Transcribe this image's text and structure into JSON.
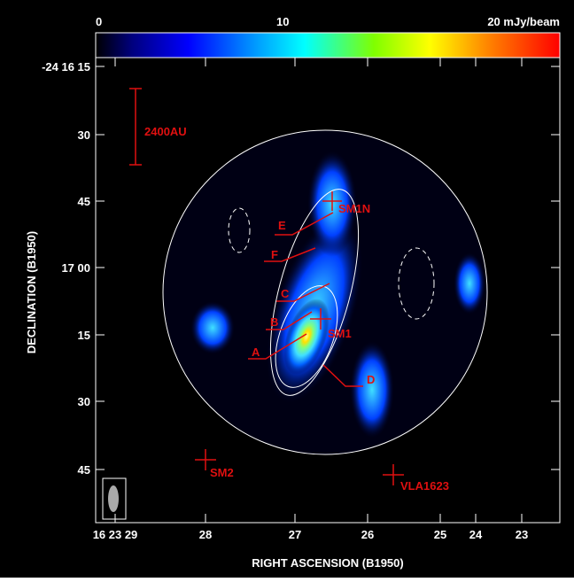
{
  "colorbar": {
    "labels": [
      "0",
      "10",
      "20 mJy/beam"
    ]
  },
  "axes": {
    "x_label": "RIGHT ASCENSION (B1950)",
    "y_label": "DECLINATION (B1950)",
    "x_ticks": [
      "16 23 29",
      "28",
      "27",
      "26",
      "25",
      "24",
      "23"
    ],
    "y_ticks": [
      "-24 16 15",
      "30",
      "45",
      "17 00",
      "15",
      "30",
      "45"
    ]
  },
  "annotations": {
    "scale": "2400AU",
    "sources": [
      "SM1N",
      "SM1",
      "SM2",
      "VLA1623"
    ],
    "positions": [
      "A",
      "B",
      "C",
      "D",
      "E",
      "F"
    ]
  }
}
